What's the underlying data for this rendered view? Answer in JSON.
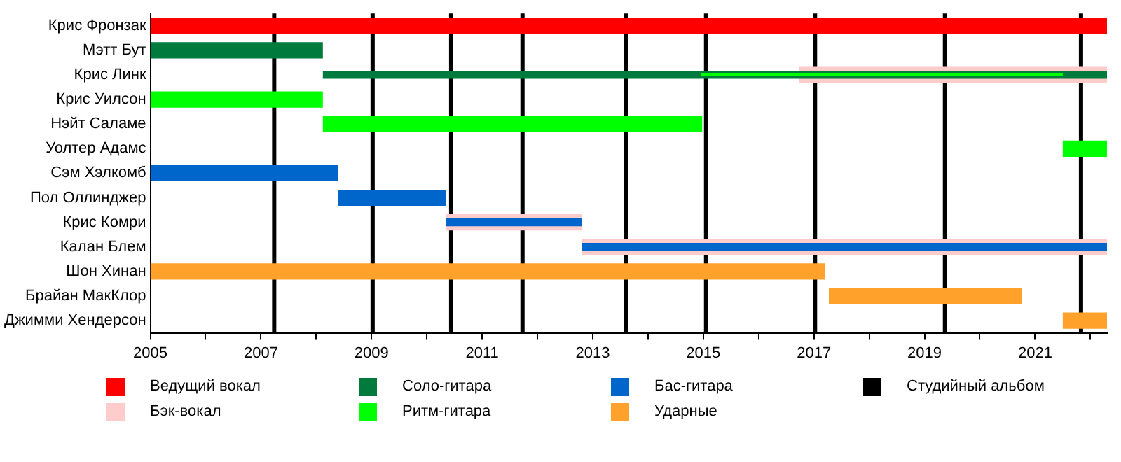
{
  "chart_data": {
    "type": "bar",
    "orientation": "horizontal",
    "legend": "bottom",
    "grid": false,
    "categories": [
      "Крис Фронзак",
      "Мэтт Бут",
      "Крис Линк",
      "Крис Уилсон",
      "Нэйт Саламе",
      "Уолтер Адамс",
      "Сэм Хэлкомб",
      "Пол Оллинджер",
      "Крис Комри",
      "Калан Блем",
      "Шон Хинан",
      "Брайан МакКлор",
      "Джимми Хендерсон"
    ],
    "xlim": [
      2005,
      2022.3
    ],
    "xticks": [
      2005,
      {
        "value": 2006,
        "label": null
      },
      2007,
      {
        "value": 2008,
        "label": null
      },
      2009,
      {
        "value": 2010,
        "label": null
      },
      2011,
      {
        "value": 2012,
        "label": null
      },
      2013,
      {
        "value": 2014,
        "label": null
      },
      2015,
      {
        "value": 2016,
        "label": null
      },
      2017,
      {
        "value": 2018,
        "label": null
      },
      2019,
      {
        "value": 2020,
        "label": null
      },
      2021,
      {
        "value": 2022,
        "label": null
      }
    ],
    "series": [
      {
        "name": "Ведущий вокал",
        "color": "#ff0000",
        "values": [
          17.3,
          null,
          null,
          null,
          null,
          null,
          null,
          null,
          null,
          null,
          null,
          null,
          null
        ],
        "base": [
          2005,
          null,
          null,
          null,
          null,
          null,
          null,
          null,
          null,
          null,
          null,
          null,
          null
        ]
      },
      {
        "name": "Бэк-вокал",
        "color": "#ffcccc",
        "values": [
          null,
          null,
          5.57,
          null,
          null,
          null,
          null,
          null,
          2.46,
          9.5,
          null,
          null,
          null
        ],
        "base": [
          null,
          null,
          2016.73,
          null,
          null,
          null,
          null,
          null,
          2010.34,
          2012.8,
          null,
          null,
          null
        ]
      },
      {
        "name": "Соло-гитара",
        "color": "#007a3d",
        "values": [
          null,
          3.12,
          14.18,
          null,
          null,
          null,
          null,
          null,
          null,
          null,
          null,
          null,
          null
        ],
        "base": [
          null,
          2005,
          2008.12,
          null,
          null,
          null,
          null,
          null,
          null,
          null,
          null,
          null,
          null
        ]
      },
      {
        "name": "Ритм-гитара",
        "color": "#00ff00",
        "values": [
          null,
          null,
          6.55,
          3.12,
          6.86,
          0.8,
          null,
          null,
          null,
          null,
          null,
          null,
          null
        ],
        "base": [
          null,
          null,
          2014.95,
          2005,
          2008.12,
          2021.5,
          null,
          null,
          null,
          null,
          null,
          null,
          null
        ]
      },
      {
        "name": "Бас-гитара",
        "color": "#0066cc",
        "values": [
          null,
          null,
          null,
          null,
          null,
          null,
          3.39,
          1.95,
          2.46,
          9.5,
          null,
          null,
          null
        ],
        "base": [
          null,
          null,
          null,
          null,
          null,
          null,
          2005,
          2008.39,
          2010.34,
          2012.8,
          null,
          null,
          null
        ]
      },
      {
        "name": "Ударные",
        "color": "#ffa12b",
        "values": [
          null,
          null,
          null,
          null,
          null,
          null,
          null,
          null,
          null,
          null,
          12.2,
          3.49,
          0.8
        ],
        "base": [
          null,
          null,
          null,
          null,
          null,
          null,
          null,
          null,
          null,
          null,
          2005,
          2017.27,
          2021.5
        ]
      }
    ],
    "ref_lines": [
      {
        "axis": "x",
        "value": 2007.24,
        "label": "Студийный альбом",
        "color": "#000000"
      },
      {
        "axis": "x",
        "value": 2009.02,
        "color": "#000000"
      },
      {
        "axis": "x",
        "value": 2010.44,
        "color": "#000000"
      },
      {
        "axis": "x",
        "value": 2011.73,
        "color": "#000000"
      },
      {
        "axis": "x",
        "value": 2013.6,
        "color": "#000000"
      },
      {
        "axis": "x",
        "value": 2015.05,
        "color": "#000000"
      },
      {
        "axis": "x",
        "value": 2017.02,
        "color": "#000000"
      },
      {
        "axis": "x",
        "value": 2019.37,
        "color": "#000000"
      },
      {
        "axis": "x",
        "value": 2021.83,
        "color": "#000000"
      }
    ]
  }
}
